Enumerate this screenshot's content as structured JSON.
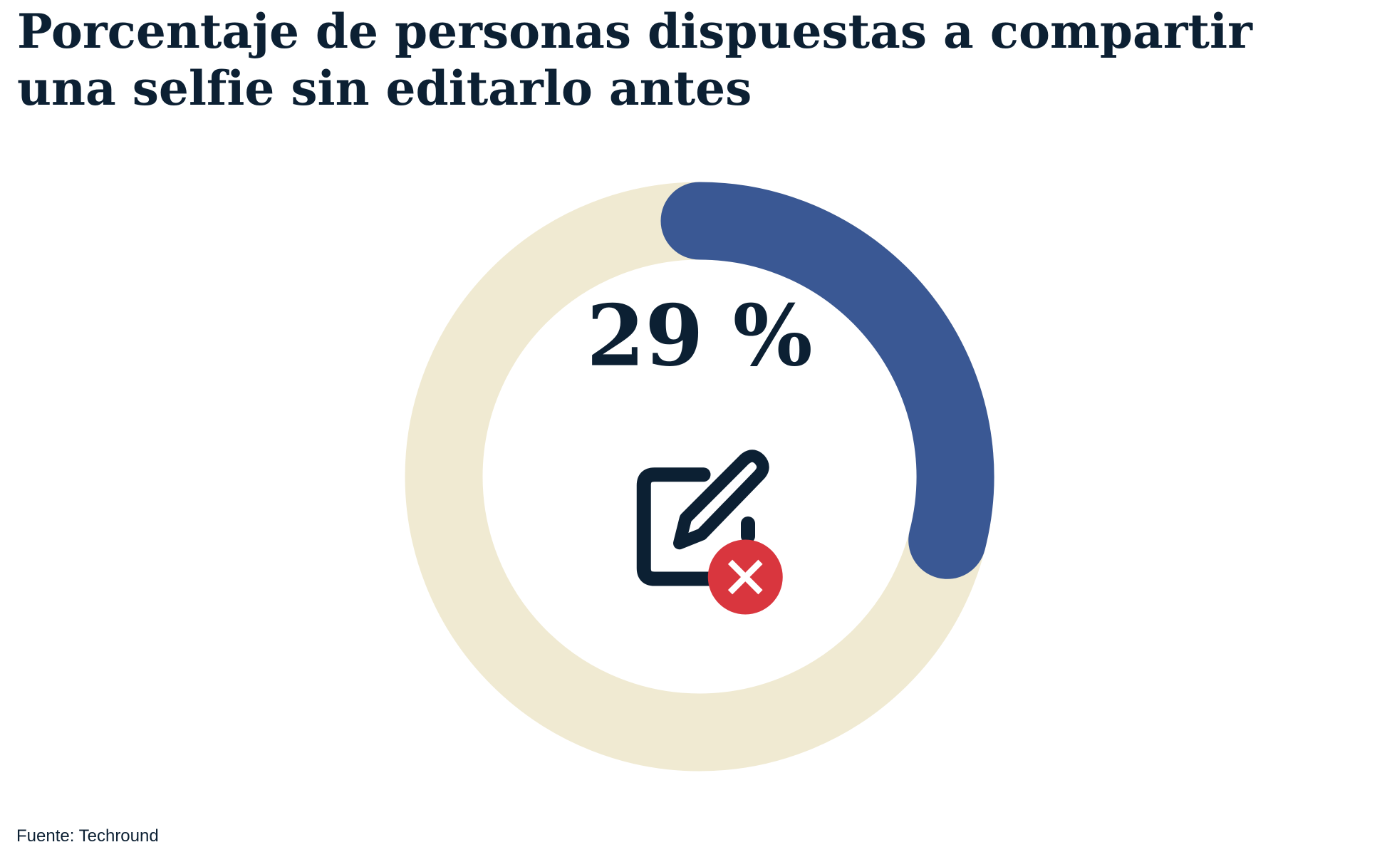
{
  "chart_data": {
    "type": "donut",
    "title": "Porcentaje de personas dispuestas a compartir una selfie sin editarlo antes",
    "values": [
      29
    ],
    "value_labels": [
      "29 %"
    ],
    "vlim": [
      0,
      100
    ],
    "color": "#3a5894",
    "track_color": "#f0ead2",
    "source": "Fuente: Techround"
  }
}
